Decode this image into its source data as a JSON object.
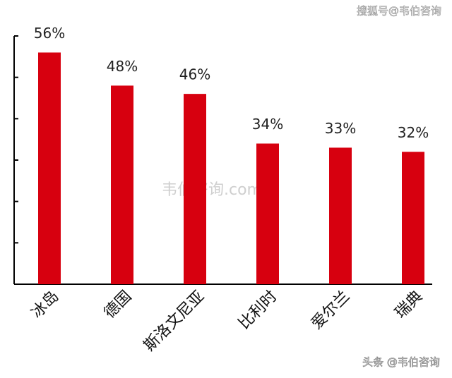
{
  "chart_data": {
    "type": "bar",
    "categories": [
      "冰岛",
      "德国",
      "斯洛文尼亚",
      "比利时",
      "爱尔兰",
      "瑞典"
    ],
    "values": [
      56,
      48,
      46,
      34,
      33,
      32
    ],
    "value_labels": [
      "56%",
      "48%",
      "46%",
      "34%",
      "33%",
      "32%"
    ],
    "color": "#d7000f",
    "ylim": [
      0,
      60
    ],
    "yticks": [
      0,
      10,
      20,
      30,
      40,
      50,
      60
    ],
    "watermarks": [
      "搜狐号@韦伯咨询",
      "韦伯咨询.com",
      "头条 @韦伯咨询"
    ]
  }
}
